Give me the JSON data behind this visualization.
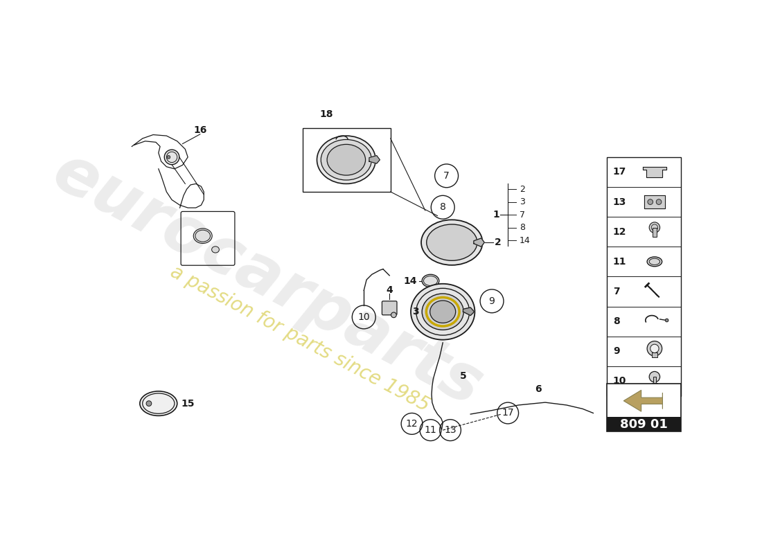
{
  "background_color": "#ffffff",
  "line_color": "#1a1a1a",
  "diagram_code": "809 01",
  "sidebar_numbers": [
    17,
    13,
    12,
    11,
    7,
    8,
    9,
    10
  ],
  "watermark_color": "#c8c8c8",
  "watermark_sub_color": "#d4c840",
  "arrow_fill": "#b8a060",
  "arrow_edge": "#888050",
  "part1_subnumbers": [
    "2",
    "3",
    "7",
    "8",
    "14"
  ]
}
